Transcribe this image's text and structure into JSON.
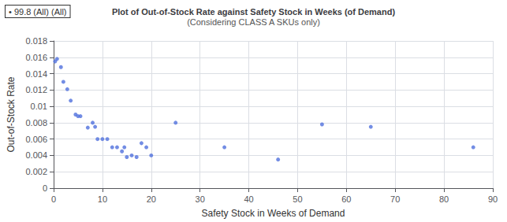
{
  "chart_data": {
    "type": "scatter",
    "title": "Plot of Out-of-Stock Rate against Safety Stock in Weeks (of Demand)",
    "subtitle": "(Considering CLASS A SKUs only)",
    "xlabel": "Safety Stock in Weeks of Demand",
    "ylabel": "Out-of-Stock Rate",
    "annotations": [
      "• 99.8 (All) (All)"
    ],
    "x": [
      0.3,
      0.7,
      1.5,
      2.0,
      2.8,
      3.5,
      4.5,
      5.0,
      5.5,
      7.0,
      8.0,
      8.5,
      9.0,
      10.0,
      11.0,
      12.0,
      13.0,
      14.0,
      14.5,
      15.0,
      16.0,
      17.0,
      18.0,
      19.0,
      20.0,
      25.0,
      35.0,
      46.0,
      55.0,
      65.0,
      86.0
    ],
    "values": [
      0.0155,
      0.0158,
      0.0148,
      0.013,
      0.0121,
      0.0107,
      0.009,
      0.0088,
      0.0088,
      0.0074,
      0.008,
      0.0075,
      0.006,
      0.006,
      0.006,
      0.005,
      0.005,
      0.0045,
      0.005,
      0.0038,
      0.004,
      0.0038,
      0.0055,
      0.005,
      0.004,
      0.008,
      0.005,
      0.0035,
      0.0078,
      0.0075,
      0.005
    ],
    "xlim": [
      0,
      90
    ],
    "xticks": [
      0,
      10,
      20,
      30,
      40,
      50,
      60,
      70,
      80,
      90
    ],
    "ylim": [
      0,
      0.018
    ],
    "yticks": [
      0,
      0.002,
      0.004,
      0.006,
      0.008,
      0.01,
      0.012,
      0.014,
      0.016,
      0.018
    ],
    "grid": true
  }
}
